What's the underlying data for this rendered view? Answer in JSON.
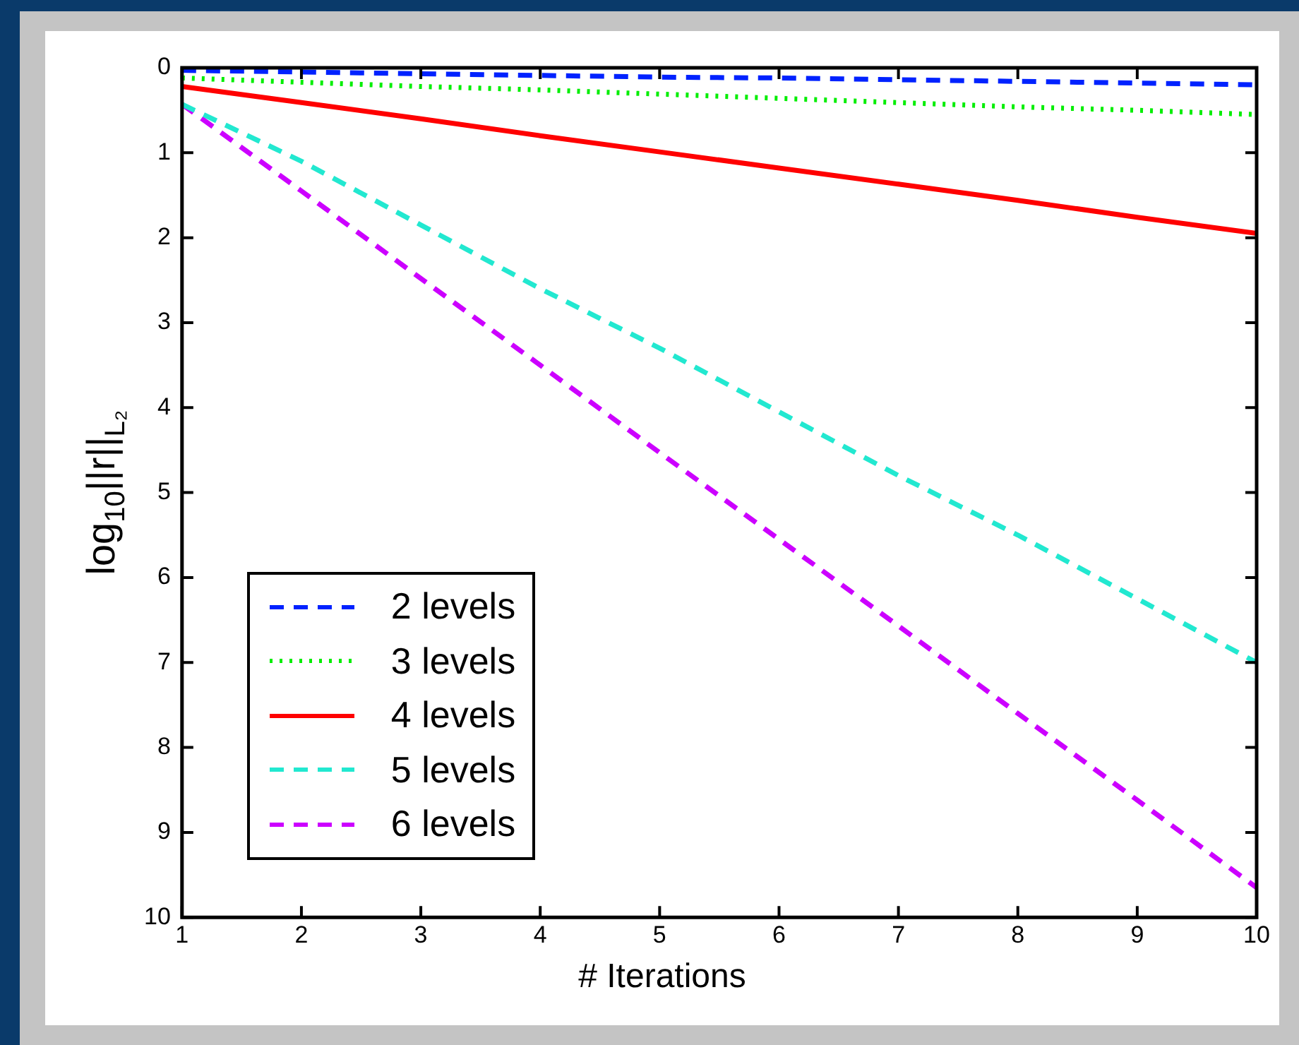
{
  "chart_data": {
    "type": "line",
    "xlabel": "# Iterations",
    "ylabel": "log$_{10}$||r||$_{L₂}$",
    "x": [
      1,
      2,
      3,
      4,
      5,
      6,
      7,
      8,
      9,
      10
    ],
    "xlim": [
      1,
      10
    ],
    "xticks": [
      1,
      2,
      3,
      4,
      5,
      6,
      7,
      8,
      9,
      10
    ],
    "ylim": [
      10,
      0
    ],
    "yticks": [
      0,
      1,
      2,
      3,
      4,
      5,
      6,
      7,
      8,
      9,
      10
    ],
    "grid": false,
    "legend": "bottom left",
    "marker": "none",
    "series": [
      {
        "name": "2 levels",
        "color": "#0022ff",
        "line_style": "dashed",
        "values": [
          0.03,
          0.05,
          0.07,
          0.09,
          0.11,
          0.12,
          0.14,
          0.16,
          0.18,
          0.2
        ]
      },
      {
        "name": "3 levels",
        "color": "#00ee00",
        "line_style": "dotted",
        "values": [
          0.12,
          0.17,
          0.22,
          0.26,
          0.31,
          0.36,
          0.41,
          0.46,
          0.5,
          0.55
        ]
      },
      {
        "name": "4 levels",
        "color": "#ff0000",
        "line_style": "solid",
        "values": [
          0.22,
          0.41,
          0.6,
          0.8,
          0.99,
          1.18,
          1.37,
          1.56,
          1.76,
          1.95
        ]
      },
      {
        "name": "5 levels",
        "color": "#22e8d0",
        "line_style": "dashed",
        "values": [
          0.43,
          1.1,
          1.85,
          2.6,
          3.3,
          4.05,
          4.8,
          5.5,
          6.25,
          7.0
        ]
      },
      {
        "name": "6 levels",
        "color": "#cc00ff",
        "line_style": "dashed",
        "values": [
          0.43,
          1.45,
          2.48,
          3.5,
          4.53,
          5.55,
          6.57,
          7.6,
          8.62,
          9.65
        ]
      }
    ]
  }
}
